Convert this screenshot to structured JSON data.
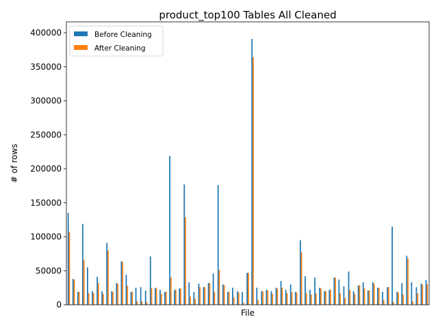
{
  "chart_data": {
    "type": "bar",
    "title": "product_top100 Tables All Cleaned",
    "xlabel": "File",
    "ylabel": "# of rows",
    "ylim": [
      0,
      400000
    ],
    "yticks": [
      0,
      50000,
      100000,
      150000,
      200000,
      250000,
      300000,
      350000,
      400000
    ],
    "ytick_labels": [
      "0",
      "50000",
      "100000",
      "150000",
      "200000",
      "250000",
      "300000",
      "350000",
      "400000"
    ],
    "grid": false,
    "legend": "top-left",
    "colors": {
      "before": "#1f77b4",
      "after": "#ff7f0e"
    },
    "series": [
      {
        "name": "Before Cleaning",
        "values": [
          135000,
          38000,
          19000,
          119000,
          55000,
          20000,
          41000,
          20000,
          91000,
          20000,
          32000,
          64000,
          44000,
          19000,
          25000,
          26000,
          21000,
          71000,
          25000,
          22000,
          19000,
          219000,
          22000,
          24000,
          177000,
          33000,
          19000,
          31000,
          26000,
          32000,
          46000,
          176000,
          30000,
          19000,
          25000,
          20000,
          19000,
          47000,
          391000,
          25000,
          20000,
          22000,
          20000,
          25000,
          35000,
          22000,
          30000,
          19000,
          95000,
          42000,
          22000,
          40000,
          25000,
          20000,
          22000,
          40000,
          37000,
          27000,
          49000,
          20000,
          28000,
          33000,
          21000,
          33000,
          25000,
          19000,
          26000,
          115000,
          19000,
          32000,
          72000,
          33000,
          26000,
          31000,
          36000
        ]
      },
      {
        "name": "After Cleaning",
        "values": [
          107000,
          37000,
          19000,
          66000,
          17000,
          17000,
          32000,
          16000,
          80000,
          19000,
          31000,
          63000,
          28000,
          19000,
          5000,
          5000,
          4000,
          25000,
          24000,
          16000,
          19000,
          40000,
          22000,
          24000,
          129000,
          12000,
          9000,
          26000,
          26000,
          32000,
          19000,
          51000,
          29000,
          19000,
          11000,
          18000,
          3000,
          47000,
          364000,
          7000,
          20000,
          21000,
          16000,
          24000,
          25000,
          17000,
          18000,
          18000,
          77000,
          17000,
          15000,
          17000,
          24000,
          20000,
          22000,
          40000,
          17000,
          10000,
          22000,
          16000,
          29000,
          24000,
          21000,
          31000,
          25000,
          7000,
          26000,
          4000,
          18000,
          15000,
          68000,
          5000,
          17000,
          30000,
          30000
        ]
      }
    ]
  }
}
